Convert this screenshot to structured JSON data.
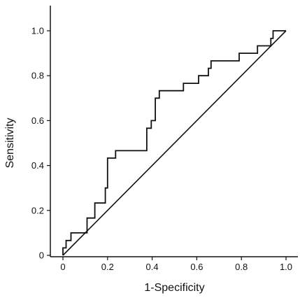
{
  "chart_data": {
    "type": "line",
    "xlabel": "1-Specificity",
    "ylabel": "Sensitivity",
    "xlim": [
      0,
      1.0
    ],
    "ylim": [
      0,
      1.0
    ],
    "x_ticks": [
      "0",
      "0.2",
      "0.4",
      "0.6",
      "0.8",
      "1.0"
    ],
    "y_ticks": [
      "0",
      "0.2",
      "0.4",
      "0.6",
      "0.8",
      "1.0"
    ],
    "grid": false,
    "legend": "none",
    "series": [
      {
        "kind": "step",
        "x": [
          0,
          0,
          0.014,
          0.014,
          0.036,
          0.036,
          0.108,
          0.108,
          0.143,
          0.143,
          0.19,
          0.19,
          0.2,
          0.2,
          0.236,
          0.236,
          0.376,
          0.376,
          0.396,
          0.396,
          0.414,
          0.414,
          0.432,
          0.432,
          0.54,
          0.54,
          0.608,
          0.608,
          0.652,
          0.652,
          0.664,
          0.664,
          0.79,
          0.79,
          0.872,
          0.872,
          0.932,
          0.932,
          0.942,
          0.942,
          1.0
        ],
        "y": [
          0,
          0.033,
          0.033,
          0.066,
          0.066,
          0.1,
          0.1,
          0.166,
          0.166,
          0.233,
          0.233,
          0.3,
          0.3,
          0.433,
          0.433,
          0.466,
          0.466,
          0.566,
          0.566,
          0.6,
          0.6,
          0.7,
          0.7,
          0.733,
          0.733,
          0.766,
          0.766,
          0.8,
          0.8,
          0.833,
          0.833,
          0.866,
          0.866,
          0.9,
          0.9,
          0.933,
          0.933,
          0.966,
          0.966,
          1.0,
          1.0
        ]
      },
      {
        "kind": "reference",
        "x": [
          0,
          1.0
        ],
        "y": [
          0,
          1.0
        ]
      }
    ],
    "colors": {
      "line": "#111111",
      "axis": "#111111",
      "background": "#ffffff"
    }
  }
}
